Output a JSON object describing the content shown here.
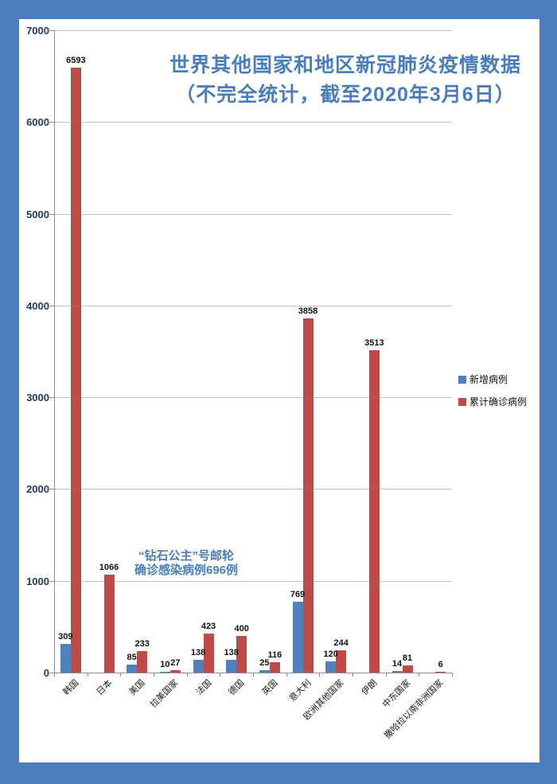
{
  "frame": {
    "border_color": "#4a7ebb",
    "background_color": "#ffffff"
  },
  "title": {
    "line1": "世界其他国家和地区新冠肺炎疫情数据",
    "line2": "（不完全统计，截至2020年3月6日）",
    "color": "#4a7ebb"
  },
  "annotation": {
    "line1": "“钻石公主”号邮轮",
    "line2": "确诊感染病例696例"
  },
  "legend": {
    "position": "right"
  },
  "chart_data": {
    "type": "bar",
    "title": "世界其他国家和地区新冠肺炎疫情数据（不完全统计，截至2020年3月6日）",
    "categories": [
      "韩国",
      "日本",
      "美国",
      "拉美国家",
      "法国",
      "德国",
      "英国",
      "意大利",
      "欧洲其他国家",
      "伊朗",
      "中东国家",
      "撒哈拉以南非洲国家"
    ],
    "series": [
      {
        "name": "新增病例",
        "color": "#4f81bd",
        "values": [
          309,
          null,
          85,
          10,
          138,
          138,
          25,
          769,
          120,
          null,
          14,
          null
        ]
      },
      {
        "name": "累计确诊病例",
        "color": "#be4b48",
        "values": [
          6593,
          1066,
          233,
          27,
          423,
          400,
          116,
          3858,
          244,
          3513,
          81,
          6
        ]
      }
    ],
    "xlabel": "",
    "ylabel": "",
    "ylim": [
      0,
      7000
    ],
    "ytick_step": 1000,
    "grid": true,
    "legend_position": "right",
    "annotation_text": "“钻石公主”号邮轮确诊感染病例696例"
  }
}
